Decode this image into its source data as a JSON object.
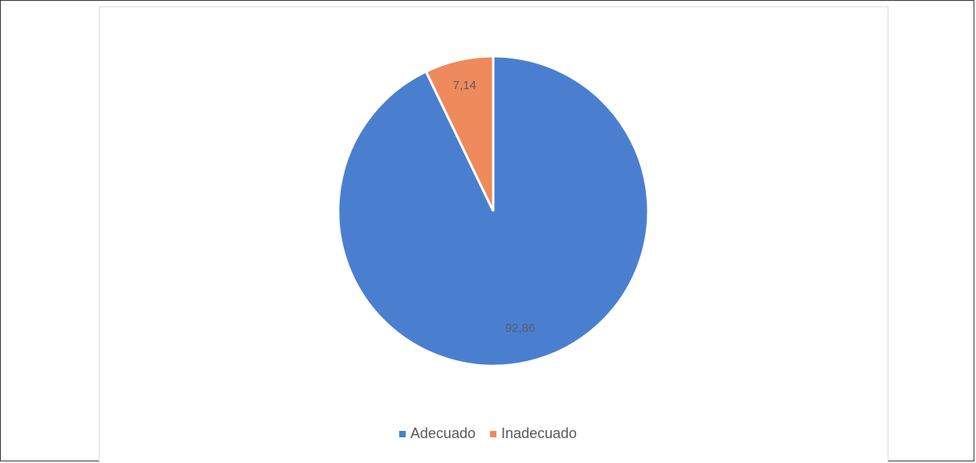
{
  "chart_data": {
    "type": "pie",
    "title": "",
    "categories": [
      "Adecuado",
      "Inadecuado"
    ],
    "values": [
      92.86,
      7.14
    ],
    "labels": [
      "92,86",
      "7,14"
    ],
    "colors": [
      "#4a7fd0",
      "#ee8a5b"
    ],
    "legend_position": "bottom",
    "start_angle_deg": 0,
    "direction": "clockwise"
  }
}
